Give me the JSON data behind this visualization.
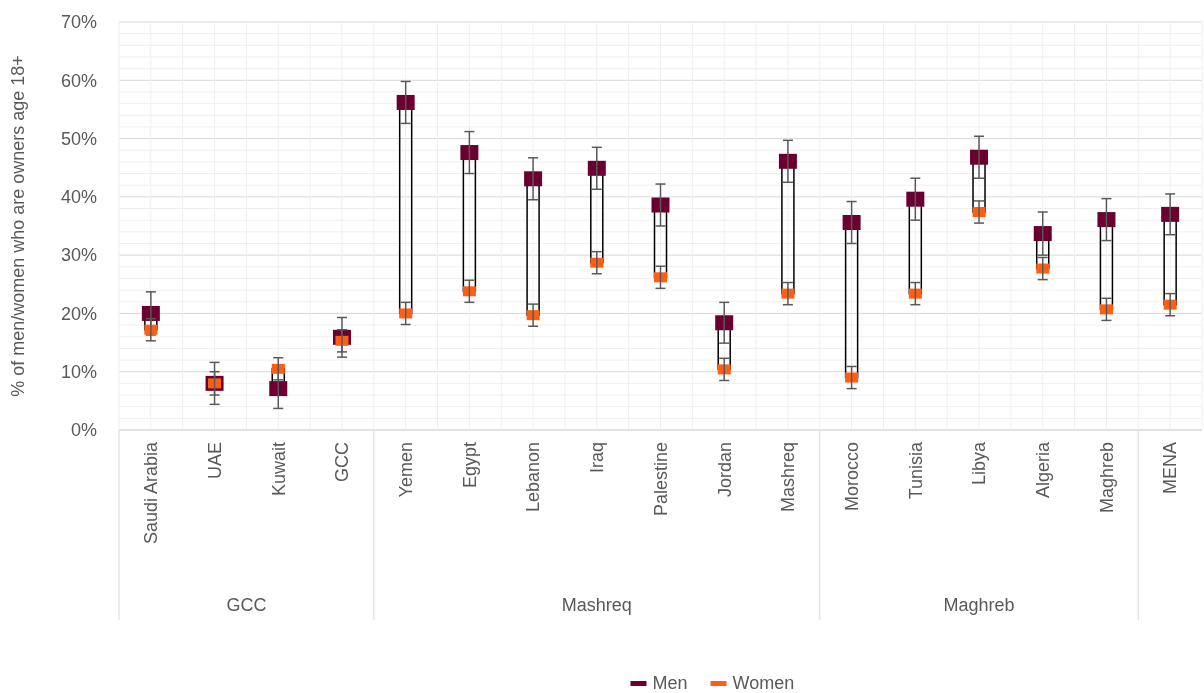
{
  "chart_data": {
    "type": "scatter",
    "ylabel": "% of men/women who are owners age 18+",
    "categories": [
      "Saudi Arabia",
      "UAE",
      "Kuwait",
      "GCC",
      "Yemen",
      "Egypt",
      "Lebanon",
      "Iraq",
      "Palestine",
      "Jordan",
      "Mashreq",
      "Morocco",
      "Tunisia",
      "Libya",
      "Algeria",
      "Maghreb",
      "MENA"
    ],
    "series": [
      {
        "name": "Men",
        "color": "#6b0030",
        "values": [
          20.0,
          8.0,
          7.1,
          15.9,
          56.2,
          47.6,
          43.1,
          44.9,
          38.6,
          18.4,
          46.1,
          35.6,
          39.6,
          46.8,
          33.7,
          36.1,
          37.0
        ],
        "errors": [
          3.7,
          3.6,
          3.4,
          3.4,
          3.6,
          3.6,
          3.6,
          3.6,
          3.6,
          3.5,
          3.6,
          3.6,
          3.6,
          3.6,
          3.7,
          3.6,
          3.5
        ]
      },
      {
        "name": "Women",
        "color": "#ff5f15",
        "values": [
          17.2,
          8.0,
          10.5,
          15.3,
          20.0,
          23.8,
          19.7,
          28.7,
          26.2,
          10.4,
          23.4,
          9.0,
          23.4,
          37.4,
          27.7,
          20.7,
          21.5
        ],
        "errors": [
          1.9,
          2.0,
          1.9,
          1.9,
          1.9,
          1.9,
          1.9,
          1.9,
          1.9,
          1.9,
          1.9,
          1.9,
          1.9,
          1.9,
          1.9,
          1.9,
          1.9
        ]
      }
    ],
    "ylim": [
      0,
      70
    ],
    "yticks": [
      {
        "value": 0,
        "label": "0%"
      },
      {
        "value": 10,
        "label": "10%"
      },
      {
        "value": 20,
        "label": "20%"
      },
      {
        "value": 30,
        "label": "30%"
      },
      {
        "value": 40,
        "label": "40%"
      },
      {
        "value": 50,
        "label": "50%"
      },
      {
        "value": 60,
        "label": "60%"
      },
      {
        "value": 70,
        "label": "70%"
      }
    ],
    "annotations": [
      "GCC",
      "Mashreq",
      "Maghreb"
    ],
    "grid": true,
    "legend": "bottom",
    "marker": "square"
  }
}
